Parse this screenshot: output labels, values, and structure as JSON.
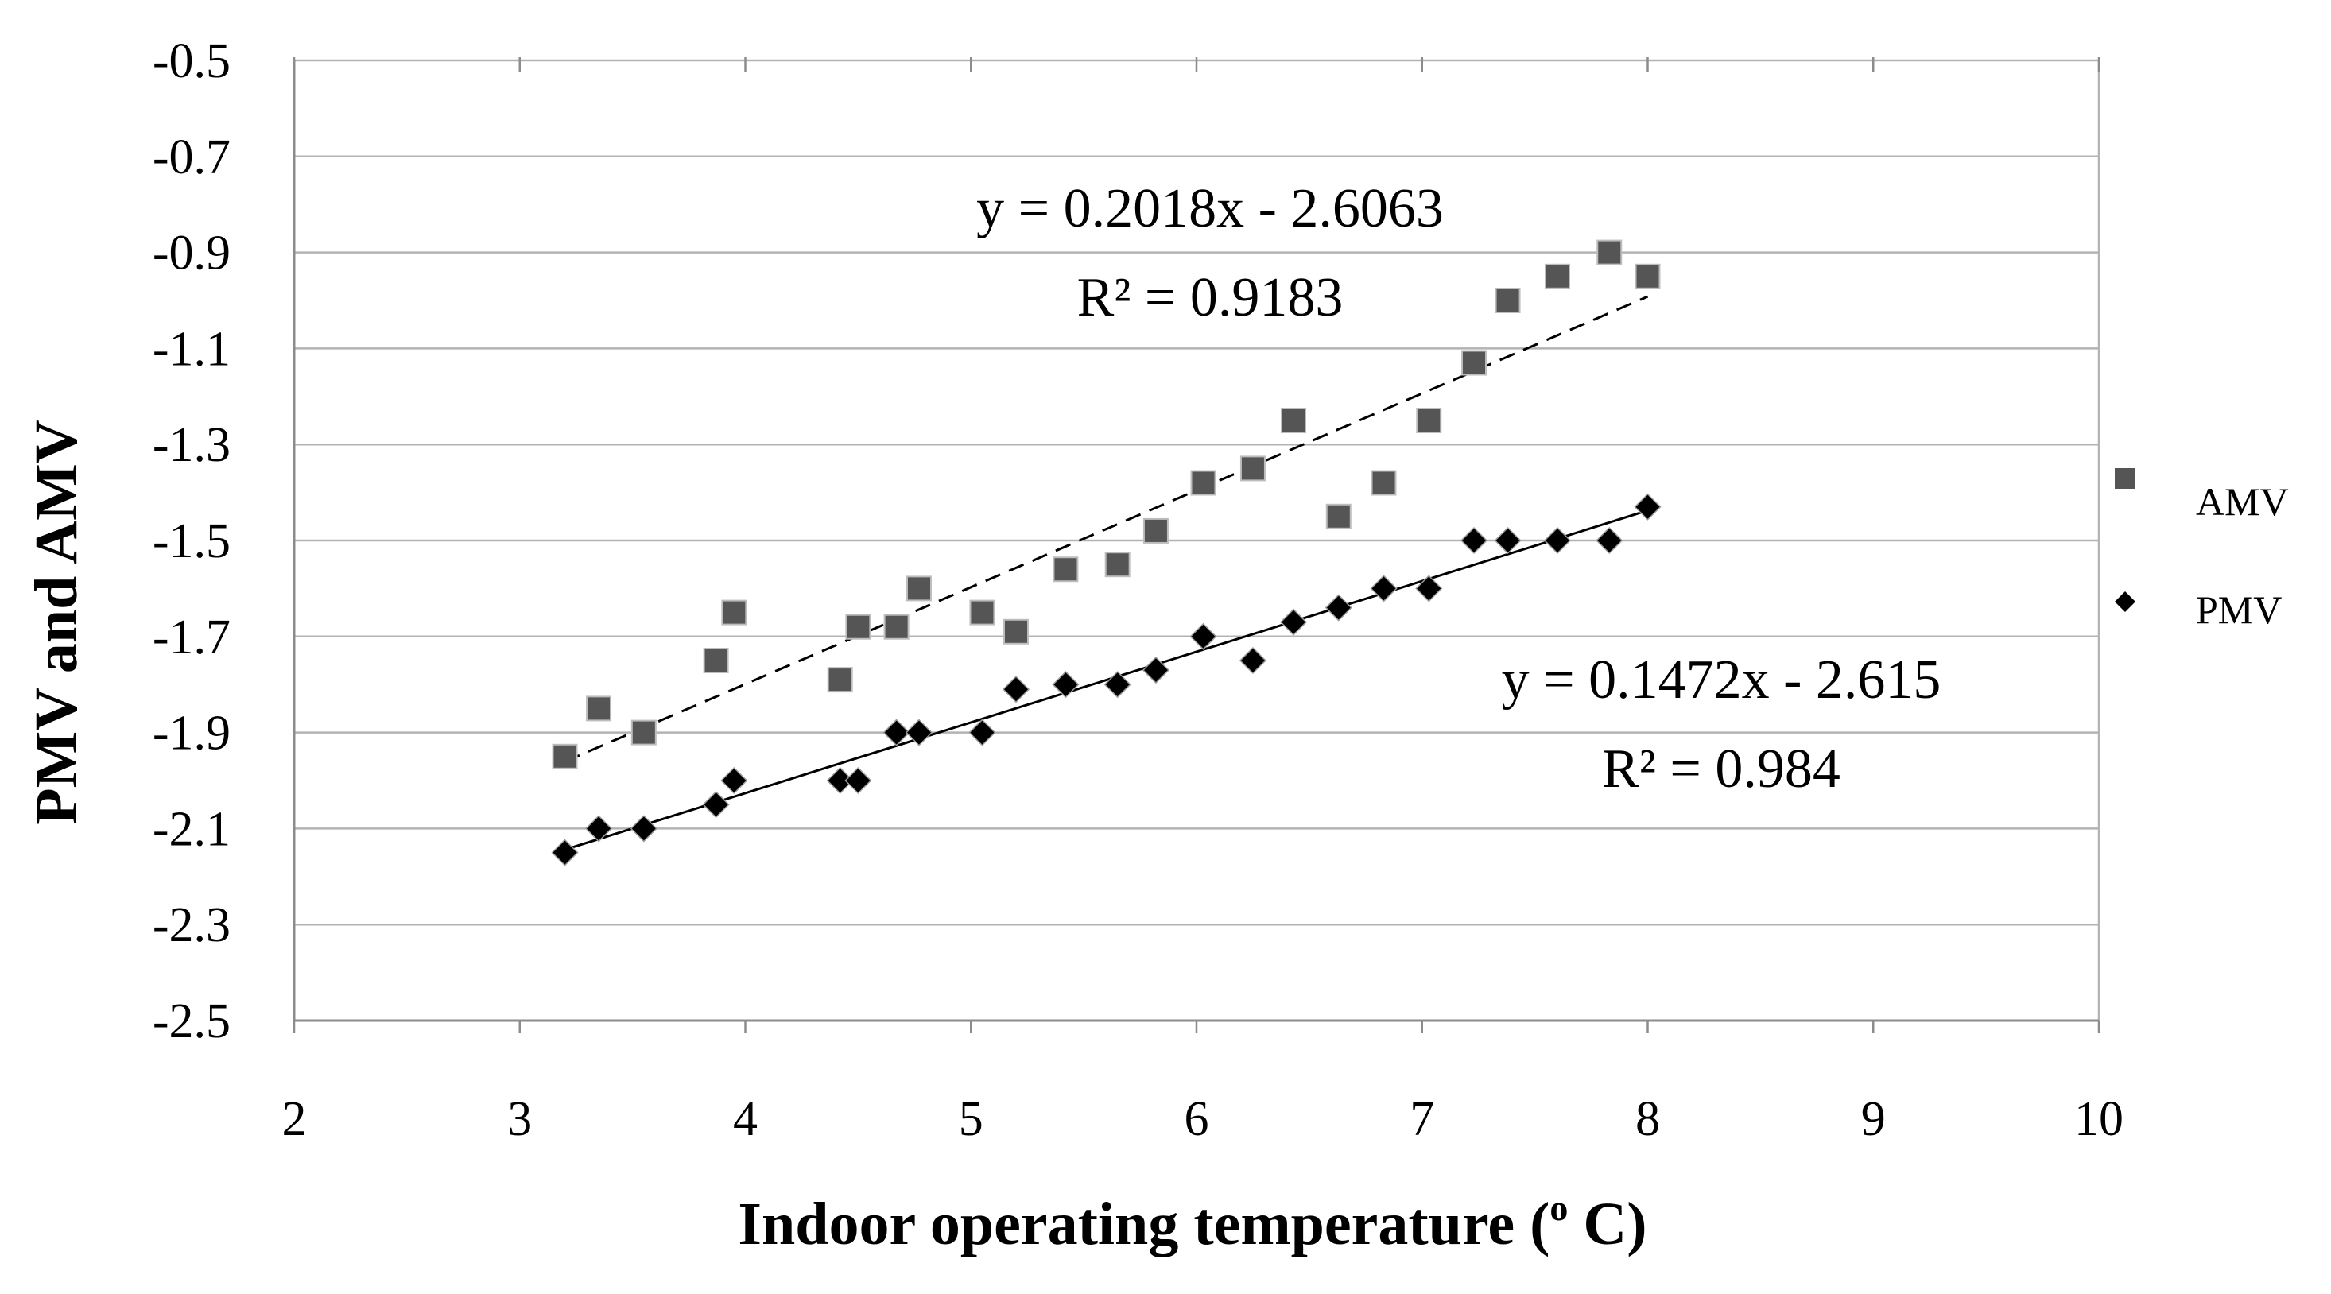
{
  "chart_data": {
    "type": "scatter",
    "title": "",
    "xlabel_main": "Indoor  operating temperature (",
    "xlabel_sup": "o",
    "xlabel_end": " C)",
    "ylabel": "PMV and AMV",
    "xlim": [
      2,
      10
    ],
    "ylim": [
      -2.5,
      -0.5
    ],
    "x_ticks": [
      2,
      3,
      4,
      5,
      6,
      7,
      8,
      9,
      10
    ],
    "y_ticks": [
      -0.5,
      -0.7,
      -0.9,
      -1.1,
      -1.3,
      -1.5,
      -1.7,
      -1.9,
      -2.1,
      -2.3,
      -2.5
    ],
    "x_tick_labels": [
      "2",
      "3",
      "4",
      "5",
      "6",
      "7",
      "8",
      "9",
      "10"
    ],
    "y_tick_labels": [
      "-0.5",
      "-0.7",
      "-0.9",
      "-1.1",
      "-1.3",
      "-1.5",
      "-1.7",
      "-1.9",
      "-2.1",
      "-2.3",
      "-2.5"
    ],
    "grid": "horizontal",
    "legend_position": "right",
    "series": [
      {
        "name": "AMV",
        "marker": "square",
        "color": "#555555",
        "points": [
          [
            3.2,
            -1.95
          ],
          [
            3.35,
            -1.85
          ],
          [
            3.55,
            -1.9
          ],
          [
            3.87,
            -1.75
          ],
          [
            3.95,
            -1.65
          ],
          [
            4.42,
            -1.79
          ],
          [
            4.5,
            -1.68
          ],
          [
            4.67,
            -1.68
          ],
          [
            4.77,
            -1.6
          ],
          [
            5.05,
            -1.65
          ],
          [
            5.2,
            -1.69
          ],
          [
            5.42,
            -1.56
          ],
          [
            5.65,
            -1.55
          ],
          [
            5.82,
            -1.48
          ],
          [
            6.03,
            -1.38
          ],
          [
            6.25,
            -1.35
          ],
          [
            6.43,
            -1.25
          ],
          [
            6.63,
            -1.45
          ],
          [
            6.83,
            -1.38
          ],
          [
            7.03,
            -1.25
          ],
          [
            7.23,
            -1.13
          ],
          [
            7.38,
            -1.0
          ],
          [
            7.6,
            -0.95
          ],
          [
            7.83,
            -0.9
          ],
          [
            8.0,
            -0.95
          ]
        ],
        "trendline": {
          "slope": 0.2018,
          "intercept": -2.6063,
          "style": "dashed",
          "x_range": [
            3.2,
            8.0
          ],
          "equation": "y = 0.2018x - 2.6063",
          "r2": "R² = 0.9183"
        }
      },
      {
        "name": "PMV",
        "marker": "diamond",
        "color": "#000000",
        "points": [
          [
            3.2,
            -2.15
          ],
          [
            3.35,
            -2.1
          ],
          [
            3.55,
            -2.1
          ],
          [
            3.87,
            -2.05
          ],
          [
            3.95,
            -2.0
          ],
          [
            4.42,
            -2.0
          ],
          [
            4.5,
            -2.0
          ],
          [
            4.67,
            -1.9
          ],
          [
            4.77,
            -1.9
          ],
          [
            5.05,
            -1.9
          ],
          [
            5.2,
            -1.81
          ],
          [
            5.42,
            -1.8
          ],
          [
            5.65,
            -1.8
          ],
          [
            5.82,
            -1.77
          ],
          [
            6.03,
            -1.7
          ],
          [
            6.25,
            -1.75
          ],
          [
            6.43,
            -1.67
          ],
          [
            6.63,
            -1.64
          ],
          [
            6.83,
            -1.6
          ],
          [
            7.03,
            -1.6
          ],
          [
            7.23,
            -1.5
          ],
          [
            7.38,
            -1.5
          ],
          [
            7.6,
            -1.5
          ],
          [
            7.83,
            -1.5
          ],
          [
            8.0,
            -1.43
          ]
        ],
        "trendline": {
          "slope": 0.1472,
          "intercept": -2.615,
          "style": "solid",
          "x_range": [
            3.2,
            8.0
          ],
          "equation": "y = 0.1472x - 2.615",
          "r2": "R² = 0.984"
        }
      }
    ]
  }
}
